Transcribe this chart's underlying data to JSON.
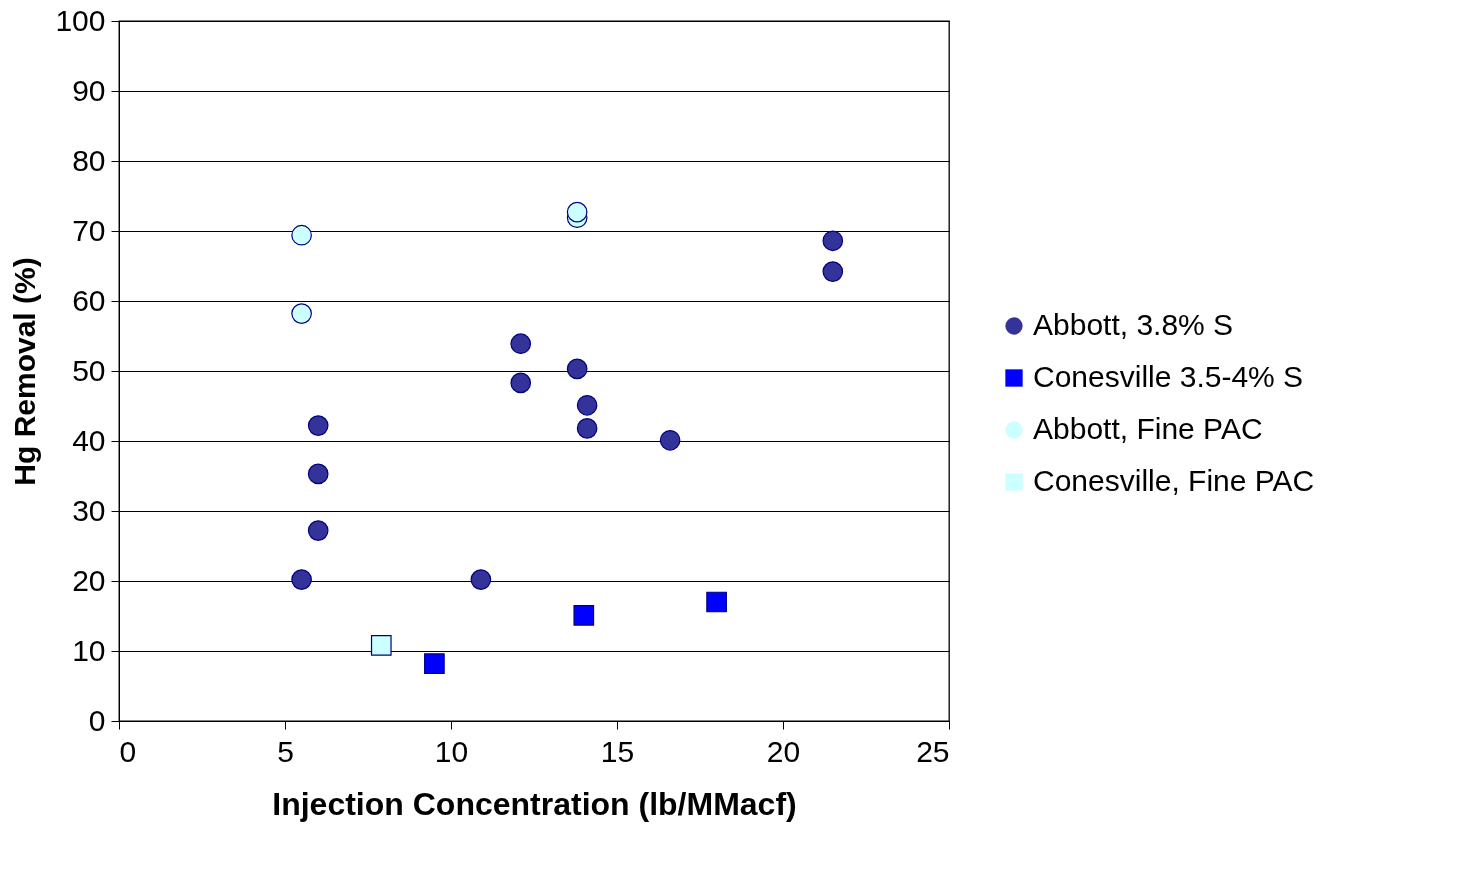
{
  "chart_data": {
    "type": "scatter",
    "xlabel": "Injection Concentration (lb/MMacf)",
    "ylabel": "Hg Removal (%)",
    "xlim": [
      0,
      25
    ],
    "xticks": [
      0,
      5,
      10,
      15,
      20,
      25
    ],
    "ylim": [
      0,
      100
    ],
    "yticks": [
      0,
      10,
      20,
      30,
      40,
      50,
      60,
      70,
      80,
      90,
      100
    ],
    "grid": "y",
    "legend": "right",
    "series": [
      {
        "name": "Abbott, 3.8% S",
        "color": "#333399",
        "marker": "circle",
        "x": [
          6.0,
          6.0,
          6.0,
          5.5,
          10.9,
          12.1,
          12.1,
          13.8,
          14.1,
          14.1,
          16.6,
          21.5,
          21.5
        ],
        "values": [
          42.2,
          35.3,
          27.2,
          20.2,
          20.2,
          53.9,
          48.3,
          50.3,
          45.1,
          41.8,
          40.1,
          68.6,
          64.2
        ]
      },
      {
        "name": "Conesville 3.5-4% S",
        "color": "#0000ff",
        "marker": "square",
        "x": [
          9.5,
          14.0,
          18.0
        ],
        "values": [
          8.2,
          15.1,
          17.0
        ]
      },
      {
        "name": "Abbott, Fine PAC",
        "color": "#ccffff",
        "marker": "circle",
        "x": [
          5.5,
          5.5,
          13.8,
          13.8
        ],
        "values": [
          69.4,
          58.2,
          71.9,
          72.7
        ]
      },
      {
        "name": "Conesville, Fine PAC",
        "color": "#ccffff",
        "marker": "square",
        "x": [
          7.9
        ],
        "values": [
          10.8
        ]
      }
    ]
  }
}
